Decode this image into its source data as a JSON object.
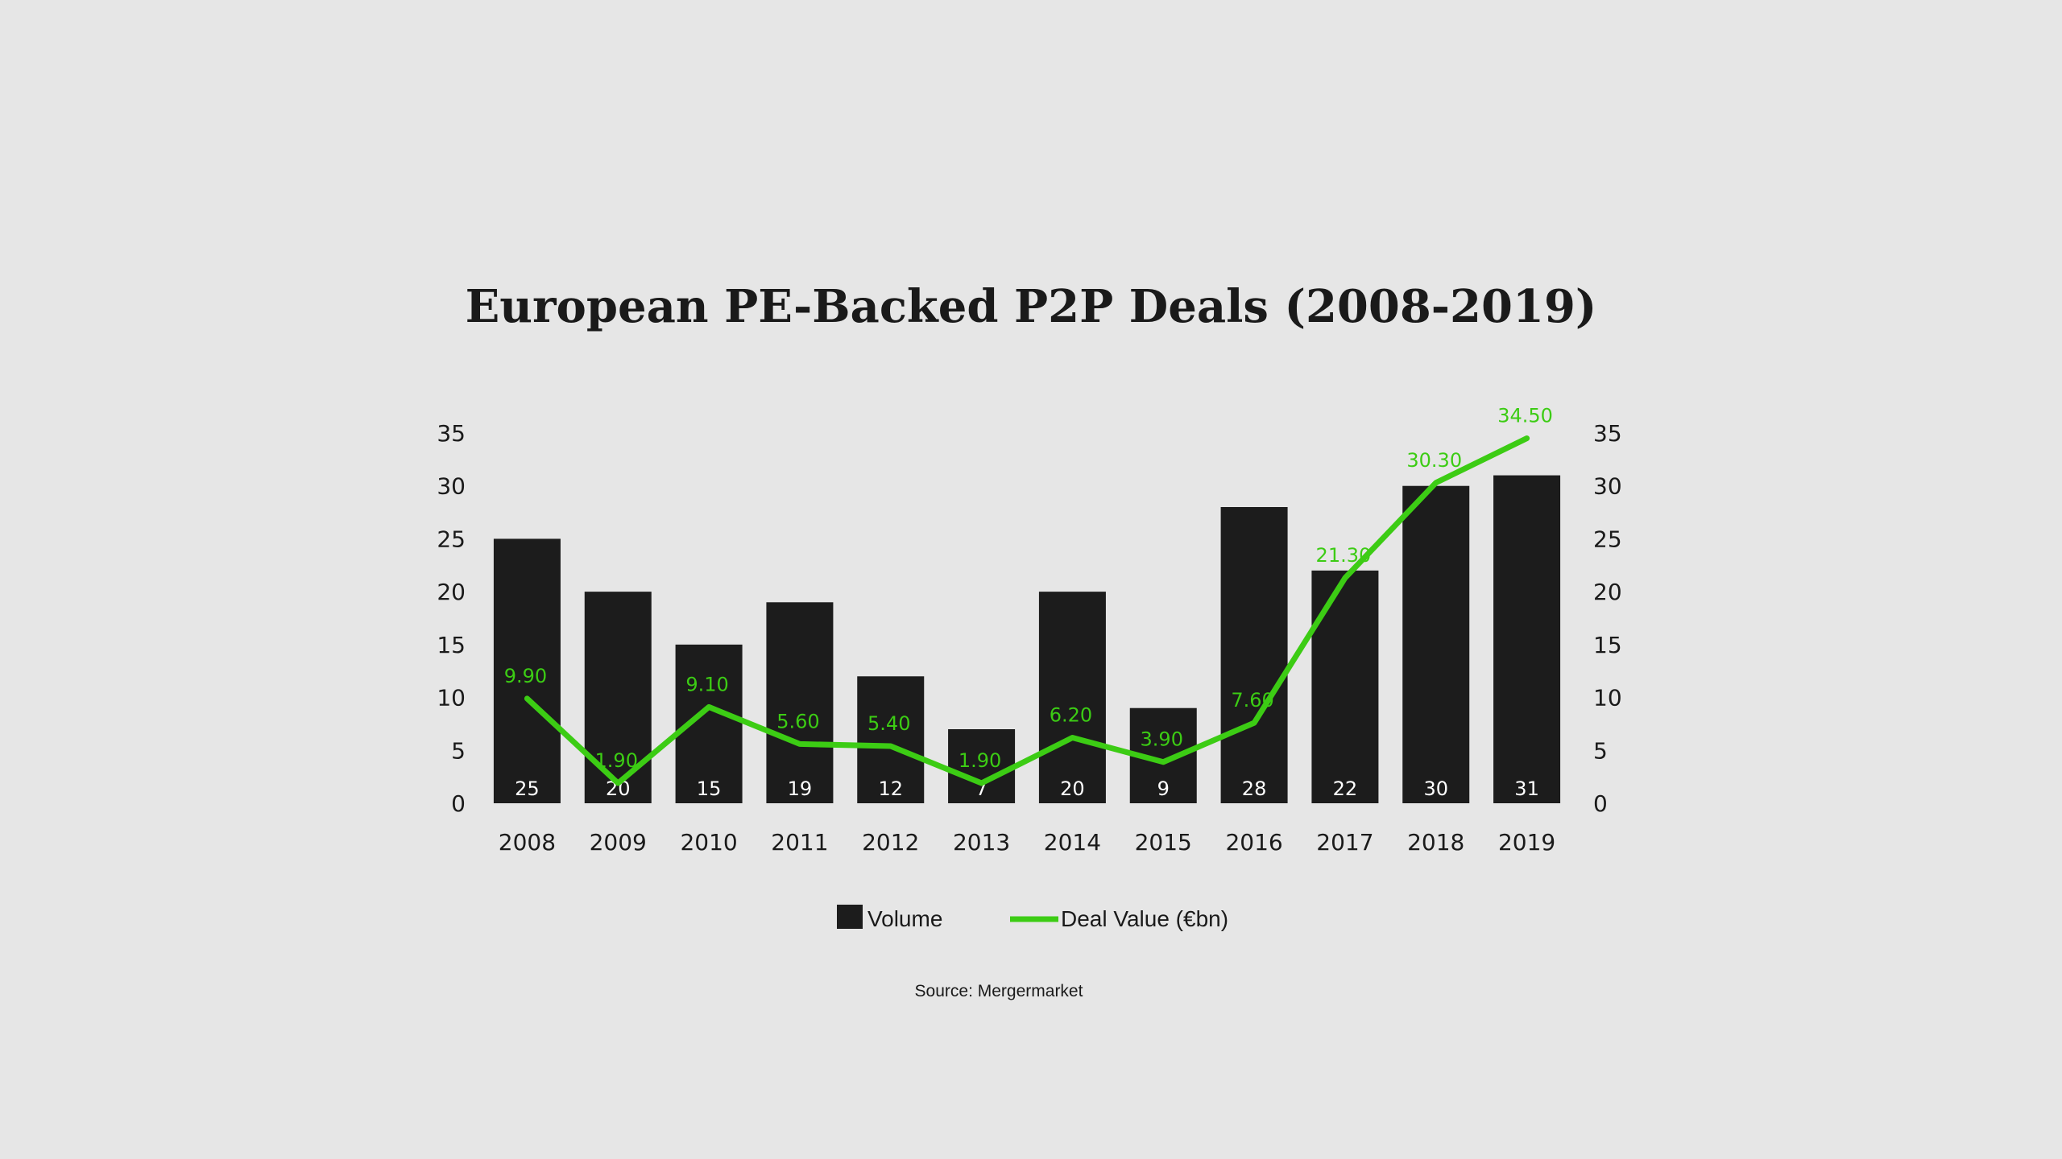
{
  "chart_data": {
    "type": "bar",
    "title": "European PE-Backed P2P Deals (2008-2019)",
    "categories": [
      "2008",
      "2009",
      "2010",
      "2011",
      "2012",
      "2013",
      "2014",
      "2015",
      "2016",
      "2017",
      "2018",
      "2019"
    ],
    "series": [
      {
        "name": "Volume",
        "type": "bar",
        "axis": "left",
        "values": [
          25,
          20,
          15,
          19,
          12,
          7,
          20,
          9,
          28,
          22,
          30,
          31
        ],
        "labels": [
          "25",
          "20",
          "15",
          "19",
          "12",
          "7",
          "20",
          "9",
          "28",
          "22",
          "30",
          "31"
        ]
      },
      {
        "name": "Deal Value (€bn)",
        "type": "line",
        "axis": "right",
        "values": [
          9.9,
          1.9,
          9.1,
          5.6,
          5.4,
          1.9,
          6.2,
          3.9,
          7.6,
          21.3,
          30.3,
          34.5
        ],
        "labels": [
          "9.90",
          "1.90",
          "9.10",
          "5.60",
          "5.40",
          "1.90",
          "6.20",
          "3.90",
          "7.60",
          "21.30",
          "30.30",
          "34.50"
        ]
      }
    ],
    "ylim": [
      0,
      35
    ],
    "y_ticks": [
      "0",
      "5",
      "10",
      "15",
      "20",
      "25",
      "30",
      "35"
    ],
    "y2_ticks": [
      "0",
      "5",
      "10",
      "15",
      "20",
      "25",
      "30",
      "35"
    ],
    "xlabel": "",
    "ylabel": "",
    "grid": false,
    "legend_position": "bottom-center",
    "source": "Source: Mergermarket"
  },
  "colors": {
    "background": "#e6e6e6",
    "bar": "#1c1c1c",
    "line": "#3ccc14",
    "text": "#1a1a1a",
    "bar_label": "#ffffff"
  }
}
